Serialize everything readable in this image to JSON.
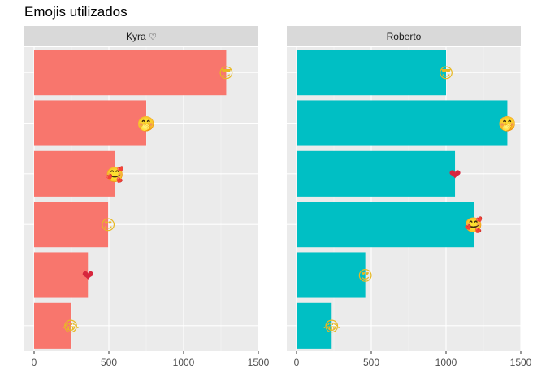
{
  "chart_data": {
    "type": "bar",
    "orientation": "horizontal",
    "title": "Emojis utilizados",
    "xlabel": "",
    "ylabel": "",
    "xlim": [
      -130,
      1500
    ],
    "x_ticks": [
      "0",
      "500",
      "1000",
      "1500"
    ],
    "x_tick_values": [
      0,
      500,
      1000,
      1500
    ],
    "grid": true,
    "legend": "none",
    "emojis": [
      {
        "icon": "smiling-face-with-sunglasses-icon",
        "glyph": "😎"
      },
      {
        "icon": "face-with-hand-over-mouth-icon",
        "glyph": "🤭"
      },
      {
        "icon": "smiling-face-with-hearts-icon",
        "glyph": "🥰"
      },
      {
        "icon": "smiling-face-with-heart-eyes-icon",
        "glyph": "😍"
      },
      {
        "icon": "red-heart-icon",
        "glyph": "❤"
      },
      {
        "icon": "face-with-tears-of-joy-icon",
        "glyph": "😂"
      }
    ],
    "panels": [
      {
        "name": "Kyra",
        "strip_icon": "white-heart-icon",
        "strip_glyph": "♡",
        "color": "#F8766D",
        "bars": [
          {
            "emoji": "smiling-face-with-sunglasses-icon",
            "value": 1285
          },
          {
            "emoji": "face-with-hand-over-mouth-icon",
            "value": 750
          },
          {
            "emoji": "smiling-face-with-hearts-icon",
            "value": 540
          },
          {
            "emoji": "smiling-face-with-heart-eyes-icon",
            "value": 495
          },
          {
            "emoji": "red-heart-icon",
            "value": 360
          },
          {
            "emoji": "face-with-tears-of-joy-icon",
            "value": 245
          }
        ]
      },
      {
        "name": "Roberto",
        "strip_icon": "",
        "strip_glyph": "",
        "color": "#00BFC4",
        "bars": [
          {
            "emoji": "smiling-face-with-sunglasses-icon",
            "value": 1000
          },
          {
            "emoji": "face-with-hand-over-mouth-icon",
            "value": 1410
          },
          {
            "emoji": "red-heart-icon",
            "value": 1060
          },
          {
            "emoji": "smiling-face-with-hearts-icon",
            "value": 1185
          },
          {
            "emoji": "smiling-face-with-heart-eyes-icon",
            "value": 460
          },
          {
            "emoji": "face-with-tears-of-joy-icon",
            "value": 235
          }
        ]
      }
    ]
  }
}
